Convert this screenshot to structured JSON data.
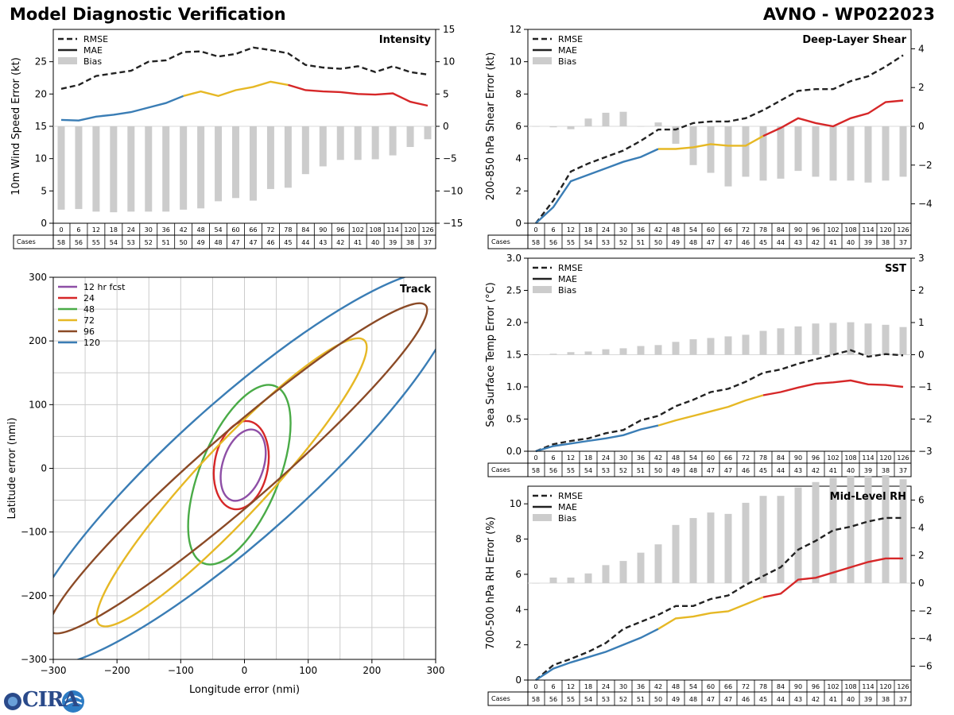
{
  "header": {
    "title": "Model Diagnostic Verification",
    "storm": "AVNO - WP022023"
  },
  "logo": {
    "text": "CIRA"
  },
  "colors": {
    "blue": "#3a7db5",
    "yellow": "#e6b825",
    "red": "#d62728",
    "purple": "#8e4fa6",
    "green": "#4aab47",
    "brown": "#8b4a26",
    "bias": "#cccccc",
    "rmse": "#222222"
  },
  "legend_labels": {
    "rmse": "RMSE",
    "mae": "MAE",
    "bias": "Bias"
  },
  "cases_label": "Cases",
  "hours": [
    0,
    6,
    12,
    18,
    24,
    30,
    36,
    42,
    48,
    54,
    60,
    66,
    72,
    78,
    84,
    90,
    96,
    102,
    108,
    114,
    120,
    126
  ],
  "cases": [
    58,
    56,
    55,
    54,
    53,
    52,
    51,
    50,
    49,
    48,
    47,
    47,
    46,
    45,
    44,
    43,
    42,
    41,
    40,
    39,
    38,
    37
  ],
  "chart_data": [
    {
      "id": "intensity",
      "type": "line",
      "title": "Intensity",
      "ylabel": "10m Wind Speed Error (kt)",
      "ylim": [
        0,
        30
      ],
      "yticks": [
        0,
        5,
        10,
        15,
        20,
        25
      ],
      "y2lim": [
        -15,
        15
      ],
      "y2ticks": [
        -15,
        -10,
        -5,
        0,
        5,
        10,
        15
      ],
      "rmse": [
        20.8,
        21.4,
        22.8,
        23.2,
        23.6,
        25.0,
        25.2,
        26.5,
        26.6,
        25.8,
        26.2,
        27.2,
        26.8,
        26.3,
        24.5,
        24.1,
        23.9,
        24.3,
        23.4,
        24.3,
        23.4,
        23.0
      ],
      "mae": [
        16.0,
        15.9,
        16.5,
        16.8,
        17.2,
        17.9,
        18.6,
        19.7,
        20.4,
        19.7,
        20.6,
        21.1,
        21.9,
        21.4,
        20.6,
        20.4,
        20.3,
        20.0,
        19.9,
        20.1,
        18.8,
        18.2
      ],
      "bias": [
        -12.9,
        -12.8,
        -13.2,
        -13.3,
        -13.2,
        -13.2,
        -13.2,
        -12.9,
        -12.7,
        -11.6,
        -11.1,
        -11.5,
        -9.7,
        -9.5,
        -7.4,
        -6.2,
        -5.2,
        -5.2,
        -5.1,
        -4.5,
        -3.2,
        -2.0
      ]
    },
    {
      "id": "shear",
      "type": "line",
      "title": "Deep-Layer Shear",
      "ylabel": "200-850 hPa Shear Error (kt)",
      "ylim": [
        0,
        12
      ],
      "yticks": [
        0,
        2,
        4,
        6,
        8,
        10,
        12
      ],
      "y2lim": [
        -5,
        5
      ],
      "y2ticks": [
        -4,
        -2,
        0,
        2,
        4
      ],
      "rmse": [
        0,
        1.4,
        3.2,
        3.7,
        4.1,
        4.5,
        5.1,
        5.8,
        5.8,
        6.2,
        6.3,
        6.3,
        6.5,
        7.0,
        7.6,
        8.2,
        8.3,
        8.3,
        8.8,
        9.1,
        9.7,
        10.4
      ],
      "mae": [
        0,
        1.0,
        2.6,
        3.0,
        3.4,
        3.8,
        4.1,
        4.6,
        4.6,
        4.7,
        4.9,
        4.8,
        4.8,
        5.4,
        5.9,
        6.5,
        6.2,
        6.0,
        6.5,
        6.8,
        7.5,
        7.6
      ],
      "bias": [
        0,
        -0.05,
        -0.15,
        0.4,
        0.7,
        0.75,
        0,
        0.2,
        -0.9,
        -2.0,
        -2.4,
        -3.1,
        -2.6,
        -2.8,
        -2.7,
        -2.3,
        -2.6,
        -2.8,
        -2.8,
        -2.9,
        -2.8,
        -2.6
      ]
    },
    {
      "id": "sst",
      "type": "line",
      "title": "SST",
      "ylabel": "Sea Surface Temp Error (°C)",
      "ylim": [
        0,
        3
      ],
      "yticks": [
        0.0,
        0.5,
        1.0,
        1.5,
        2.0,
        2.5,
        3.0
      ],
      "y2lim": [
        -3,
        3
      ],
      "y2ticks": [
        -3,
        -2,
        -1,
        0,
        1,
        2,
        3
      ],
      "rmse": [
        0,
        0.11,
        0.16,
        0.2,
        0.28,
        0.33,
        0.48,
        0.55,
        0.7,
        0.8,
        0.92,
        0.97,
        1.08,
        1.22,
        1.27,
        1.36,
        1.43,
        1.5,
        1.57,
        1.47,
        1.51,
        1.49
      ],
      "mae": [
        0,
        0.08,
        0.12,
        0.16,
        0.2,
        0.25,
        0.34,
        0.4,
        0.48,
        0.55,
        0.62,
        0.69,
        0.79,
        0.87,
        0.92,
        0.99,
        1.05,
        1.07,
        1.1,
        1.04,
        1.03,
        1.0
      ],
      "bias": [
        0,
        0.03,
        0.08,
        0.1,
        0.17,
        0.2,
        0.27,
        0.3,
        0.4,
        0.48,
        0.52,
        0.57,
        0.62,
        0.74,
        0.82,
        0.88,
        0.97,
        0.99,
        1.01,
        0.97,
        0.93,
        0.86
      ]
    },
    {
      "id": "rh",
      "type": "line",
      "title": "Mid-Level RH",
      "ylabel": "700-500 hPa RH Error (%)",
      "ylim": [
        0,
        11
      ],
      "yticks": [
        0,
        2,
        4,
        6,
        8,
        10
      ],
      "y2lim": [
        -7,
        7
      ],
      "y2ticks": [
        -6,
        -4,
        -2,
        0,
        2,
        4,
        6
      ],
      "rmse": [
        0,
        0.85,
        1.2,
        1.6,
        2.1,
        2.9,
        3.3,
        3.7,
        4.2,
        4.2,
        4.6,
        4.8,
        5.4,
        5.9,
        6.4,
        7.4,
        7.9,
        8.5,
        8.7,
        9.0,
        9.2,
        9.2
      ],
      "mae": [
        0,
        0.65,
        1.0,
        1.3,
        1.6,
        2.0,
        2.4,
        2.9,
        3.5,
        3.6,
        3.8,
        3.9,
        4.3,
        4.7,
        4.9,
        5.7,
        5.8,
        6.1,
        6.4,
        6.7,
        6.9,
        6.9
      ],
      "bias": [
        0,
        0.4,
        0.4,
        0.7,
        1.3,
        1.6,
        2.2,
        2.8,
        4.2,
        4.7,
        5.1,
        5.0,
        5.8,
        6.3,
        6.3,
        6.9,
        7.3,
        7.6,
        7.7,
        7.7,
        7.8,
        7.5
      ]
    },
    {
      "id": "track",
      "type": "scatter",
      "title": "Track",
      "xlabel": "Longitude error (nmi)",
      "ylabel": "Latitude error (nmi)",
      "xlim": [
        -300,
        300
      ],
      "ylim": [
        -300,
        300
      ],
      "ticks": [
        -300,
        -200,
        -100,
        0,
        100,
        200,
        300
      ],
      "ellipses": [
        {
          "label": "12 hr fcst",
          "color": "purple",
          "cx": -2,
          "cy": 5,
          "rx": 58,
          "ry": 32,
          "angle": 72
        },
        {
          "label": "24",
          "color": "red",
          "cx": -5,
          "cy": 5,
          "rx": 70,
          "ry": 42,
          "angle": 80
        },
        {
          "label": "48",
          "color": "green",
          "cx": -8,
          "cy": -10,
          "rx": 150,
          "ry": 62,
          "angle": 68
        },
        {
          "label": "72",
          "color": "yellow",
          "cx": -20,
          "cy": -22,
          "rx": 305,
          "ry": 55,
          "angle": 47
        },
        {
          "label": "96",
          "color": "brown",
          "cx": -10,
          "cy": 0,
          "rx": 390,
          "ry": 55,
          "angle": 41
        },
        {
          "label": "120",
          "color": "blue",
          "cx": -5,
          "cy": 0,
          "rx": 450,
          "ry": 105,
          "angle": 42
        }
      ]
    }
  ]
}
